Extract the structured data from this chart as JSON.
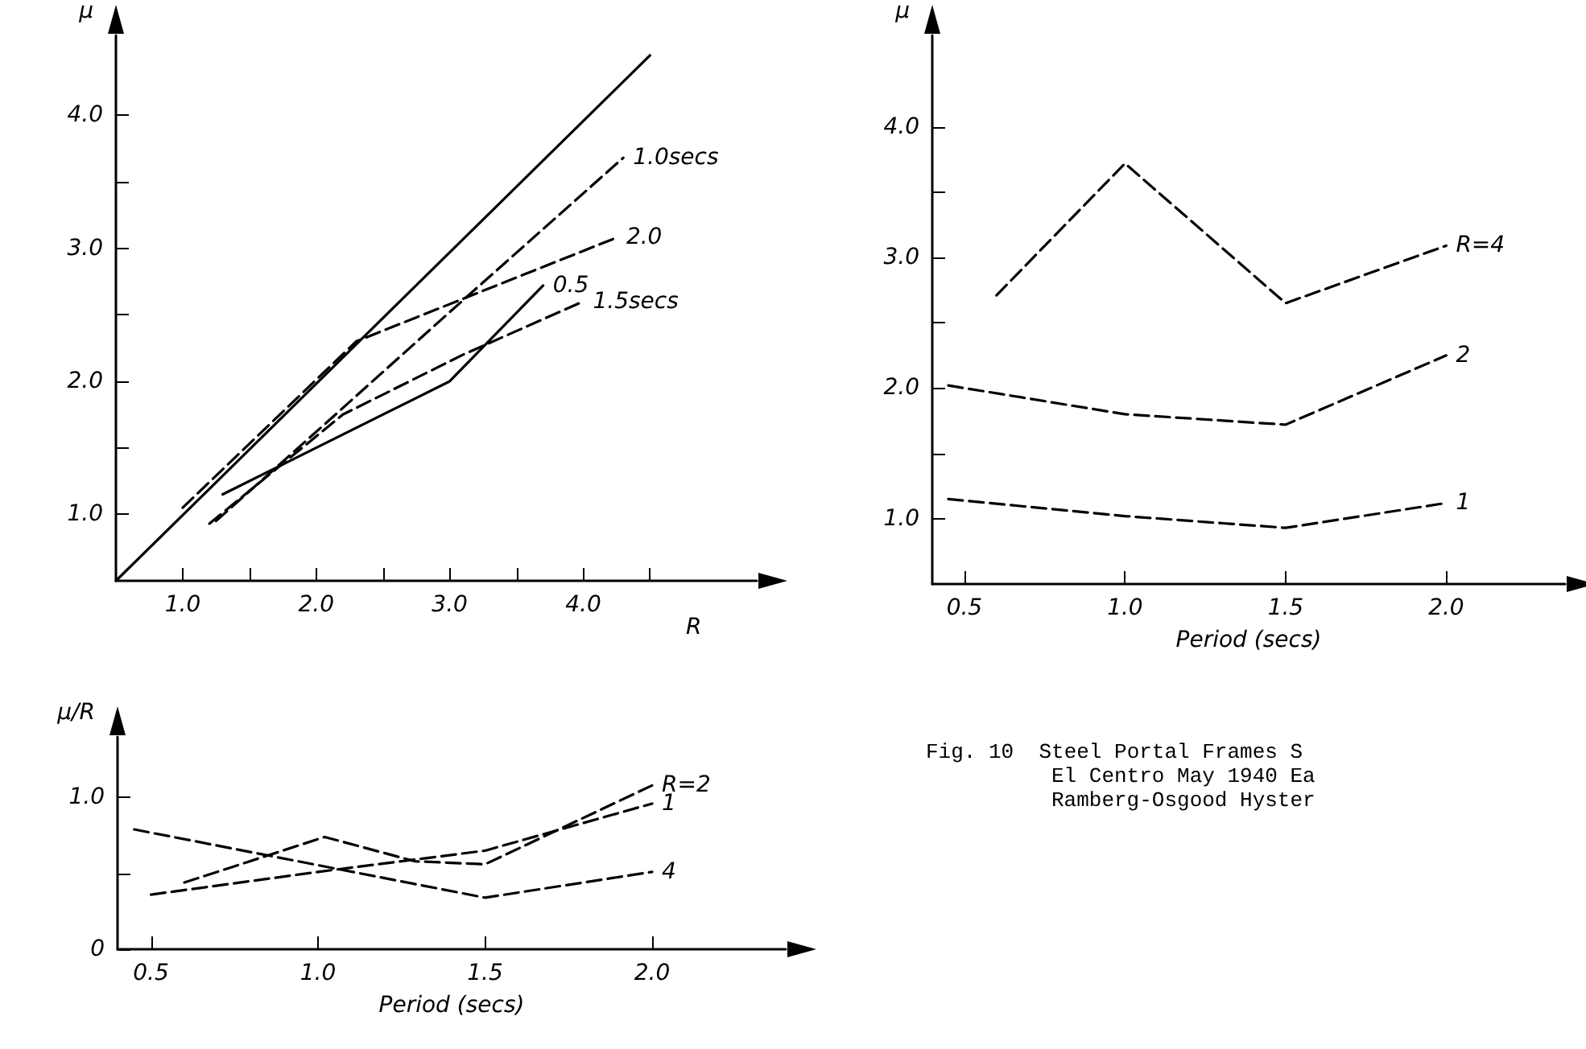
{
  "chart_data": [
    {
      "type": "line",
      "xlabel": "R",
      "ylabel": "μ",
      "xlim": [
        0.5,
        5.3
      ],
      "ylim": [
        0.5,
        4.6
      ],
      "marker": "none",
      "xticks": [
        {
          "value": 1,
          "label": "1.0"
        },
        {
          "value": 1.5,
          "label": null
        },
        {
          "value": 2,
          "label": "2.0"
        },
        {
          "value": 2.5,
          "label": null
        },
        {
          "value": 3,
          "label": "3.0"
        },
        {
          "value": 3.5,
          "label": null
        },
        {
          "value": 4,
          "label": "4.0"
        },
        {
          "value": 4.5,
          "label": null
        }
      ],
      "yticks": [
        {
          "value": 1,
          "label": "1.0"
        },
        {
          "value": 1.5,
          "label": null
        },
        {
          "value": 2,
          "label": "2.0"
        },
        {
          "value": 2.5,
          "label": null
        },
        {
          "value": 3,
          "label": "3.0"
        },
        {
          "value": 3.5,
          "label": null
        },
        {
          "value": 4,
          "label": "4.0"
        }
      ],
      "series": [
        {
          "color": "#000000",
          "line_style": "solid",
          "x": [
            0.5,
            4.5
          ],
          "values": [
            0.5,
            4.45
          ]
        },
        {
          "name": "1.0secs",
          "color": "#000000",
          "line_style": "dashed",
          "x": [
            1.25,
            2.0,
            3.0,
            4.3
          ],
          "values": [
            0.95,
            1.62,
            2.52,
            3.68
          ]
        },
        {
          "name": "2.0",
          "color": "#000000",
          "line_style": "dashed",
          "x": [
            1.0,
            2.3,
            4.25
          ],
          "values": [
            1.05,
            2.3,
            3.08
          ]
        },
        {
          "name": "0.5",
          "color": "#000000",
          "line_style": "solid",
          "x": [
            1.3,
            1.9,
            3.0,
            3.7
          ],
          "values": [
            1.15,
            1.45,
            2.0,
            2.72
          ]
        },
        {
          "name": "1.5secs",
          "color": "#000000",
          "line_style": "dashed",
          "x": [
            1.2,
            2.2,
            3.1,
            4.0
          ],
          "values": [
            0.93,
            1.75,
            2.2,
            2.6
          ]
        }
      ]
    },
    {
      "type": "line",
      "xlabel": "Period (secs)",
      "ylabel": "μ",
      "xlim": [
        0.4,
        2.37
      ],
      "ylim": [
        0.5,
        4.7
      ],
      "marker": "none",
      "xticks": [
        {
          "value": 0.5,
          "label": "0.5"
        },
        {
          "value": 1,
          "label": "1.0"
        },
        {
          "value": 1.5,
          "label": "1.5"
        },
        {
          "value": 2,
          "label": "2.0"
        }
      ],
      "yticks": [
        {
          "value": 1,
          "label": "1.0"
        },
        {
          "value": 1.5,
          "label": null
        },
        {
          "value": 2,
          "label": "2.0"
        },
        {
          "value": 2.5,
          "label": null
        },
        {
          "value": 3,
          "label": "3.0"
        },
        {
          "value": 3.5,
          "label": null
        },
        {
          "value": 4,
          "label": "4.0"
        }
      ],
      "series": [
        {
          "name": "R=4",
          "color": "#000000",
          "line_style": "dashed",
          "x": [
            0.6,
            1.0,
            1.5,
            2.0
          ],
          "values": [
            2.71,
            3.72,
            2.65,
            3.09
          ]
        },
        {
          "name": "2",
          "color": "#000000",
          "line_style": "dashed",
          "x": [
            0.45,
            1.0,
            1.5,
            2.0
          ],
          "values": [
            2.02,
            1.8,
            1.72,
            2.25
          ]
        },
        {
          "name": "1",
          "color": "#000000",
          "line_style": "dashed",
          "x": [
            0.45,
            1.0,
            1.5,
            2.0
          ],
          "values": [
            1.15,
            1.02,
            0.93,
            1.12
          ]
        }
      ]
    },
    {
      "type": "line",
      "xlabel": "Period (secs)",
      "ylabel": "μ/R",
      "xlim": [
        0.4,
        2.4
      ],
      "ylim": [
        0,
        1.4
      ],
      "marker": "none",
      "xticks": [
        {
          "value": 0.5,
          "label": "0.5"
        },
        {
          "value": 1,
          "label": "1.0"
        },
        {
          "value": 1.5,
          "label": "1.5"
        },
        {
          "value": 2,
          "label": "2.0"
        }
      ],
      "yticks": [
        0,
        {
          "value": 0.5,
          "label": null
        },
        {
          "value": 1,
          "label": "1.0"
        }
      ],
      "series": [
        {
          "name": "R=2",
          "color": "#000000",
          "line_style": "dashed",
          "x": [
            0.6,
            1.02,
            1.29,
            1.5,
            2.0
          ],
          "values": [
            0.44,
            0.74,
            0.58,
            0.56,
            1.08
          ]
        },
        {
          "name": "1",
          "color": "#000000",
          "line_style": "dashed",
          "x": [
            0.5,
            1.0,
            1.5,
            2.0
          ],
          "values": [
            0.36,
            0.51,
            0.65,
            0.96
          ]
        },
        {
          "name": "4",
          "color": "#000000",
          "line_style": "dashed",
          "x": [
            0.45,
            1.5,
            2.0
          ],
          "values": [
            0.79,
            0.34,
            0.51
          ]
        }
      ]
    },
    {
      "type": "other",
      "annotations": [
        "Fig. 10  Steel Portal Frames S",
        "El Centro May 1940 Ea",
        "Ramberg-Osgood Hyster"
      ]
    }
  ]
}
